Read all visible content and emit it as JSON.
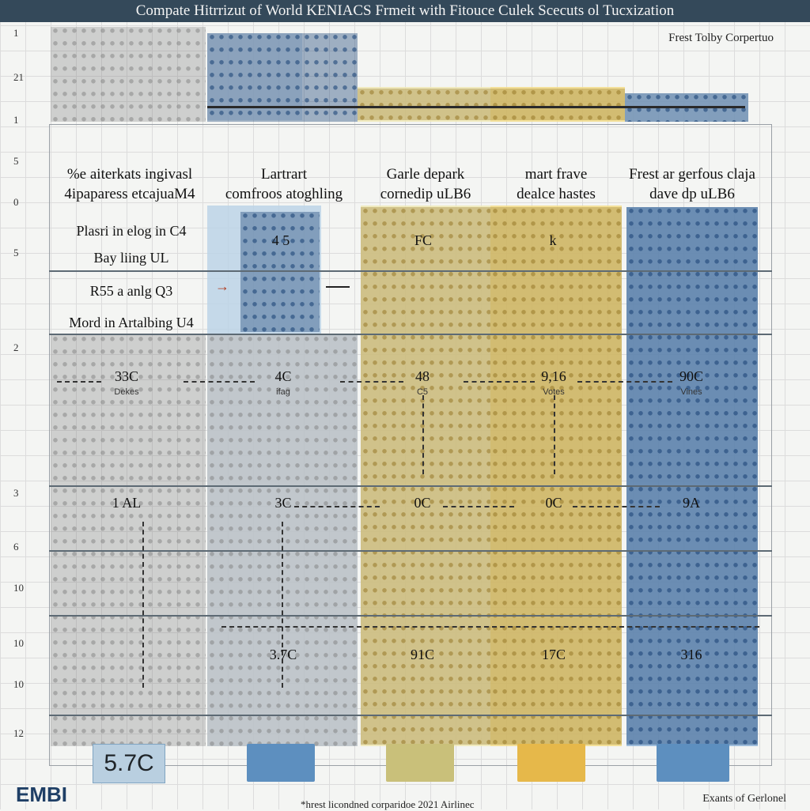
{
  "title": "Compate Hitrrizut of World KENIACS Frmeit with Fitouce Culek Scecuts ol Tucxization",
  "subtitle": "Frest Tolby Corpertuo",
  "axis_numbers": [
    "1",
    "21",
    "1",
    "5",
    "0",
    "5",
    "2",
    "3",
    "6",
    "10",
    "10",
    "10",
    "12"
  ],
  "columns": [
    {
      "header_line1": "%e aiterkats ingivasl",
      "header_line2": "4ipaparess etcajuaM4",
      "color": "#e8e8e8"
    },
    {
      "header_line1": "Lartrart",
      "header_line2": "comfroos atoghling",
      "color": "#bcd3e6"
    },
    {
      "header_line1": "Garle depark",
      "header_line2": "cornedip uLB6",
      "color": "#efe8b5"
    },
    {
      "header_line1": "mart frave",
      "header_line2": "dealce hastes",
      "color": "#f2dc8a"
    },
    {
      "header_line1": "Frest ar gerfous claja",
      "header_line2": "dave dp uLB6",
      "color": "#8fb3d6"
    }
  ],
  "row_labels": [
    "Plasri in elog in C4",
    "Bay liing UL",
    "R55 a anlg Q3",
    "Mord in Artalbing U4"
  ],
  "upper_values": [
    "4 5",
    "FC",
    "k"
  ],
  "middle_values": [
    {
      "val": "33C",
      "sub": "Dekes"
    },
    {
      "val": "4C",
      "sub": "ifag"
    },
    {
      "val": "48",
      "sub": "C5"
    },
    {
      "val": "9,16",
      "sub": "Votes"
    },
    {
      "val": "90C",
      "sub": "Vines"
    }
  ],
  "lower_values": [
    "1 AL",
    "3C",
    "0C",
    "0C",
    "9A"
  ],
  "bottom_values": [
    "3.7C",
    "91C",
    "17C",
    "316"
  ],
  "big_temp": "5.7C",
  "logo": "EMBI",
  "footer_center": "*hrest licondned corparidoe 2021 Airlinec",
  "footer_right": "Exants of Gerlonel"
}
